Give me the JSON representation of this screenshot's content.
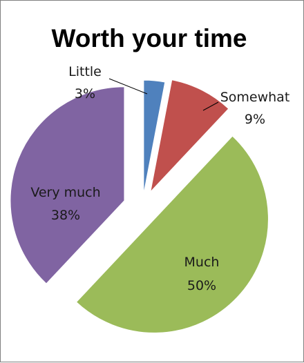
{
  "chart_data": {
    "type": "pie",
    "title": "Worth your time",
    "slices": [
      {
        "label": "Little",
        "value": 3,
        "value_label": "3%",
        "color": "#4f81bd"
      },
      {
        "label": "Somewhat",
        "value": 9,
        "value_label": "9%",
        "color": "#c0504d"
      },
      {
        "label": "Much",
        "value": 50,
        "value_label": "50%",
        "color": "#9bbb59"
      },
      {
        "label": "Very much",
        "value": 38,
        "value_label": "38%",
        "color": "#8064a2"
      }
    ],
    "exploded": true,
    "legend": "none"
  }
}
